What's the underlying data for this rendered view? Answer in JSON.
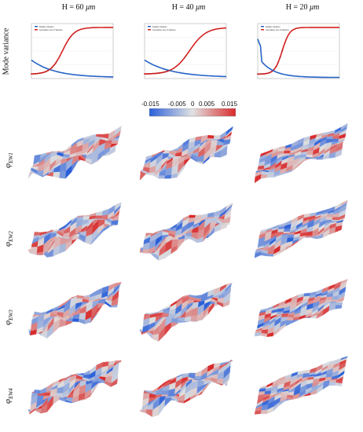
{
  "columns": [
    {
      "title": "H = 60 ",
      "unit": "μm"
    },
    {
      "title": "H = 40 ",
      "unit": "μm"
    },
    {
      "title": "H = 20 ",
      "unit": "μm"
    }
  ],
  "ylabel_main": "Mode variance",
  "colorbar": {
    "labels": [
      "-0.015",
      "-0.005",
      "0",
      "0.005",
      "0.015"
    ],
    "low_color": "#2a5fd9",
    "mid_color": "#dcdcdc",
    "high_color": "#d92a2a"
  },
  "rows": [
    {
      "label": "φ",
      "sub": "EW1"
    },
    {
      "label": "φ",
      "sub": "EW2"
    },
    {
      "label": "φ",
      "sub": "EW3"
    },
    {
      "label": "φ",
      "sub": "EW4"
    }
  ],
  "chart_data": [
    {
      "type": "line",
      "series": [
        {
          "name": "Relative Variance"
        },
        {
          "name": "Cumulative sum of Variance"
        }
      ]
    },
    {
      "type": "line",
      "series": [
        {
          "name": "Relative Variance"
        },
        {
          "name": "Cumulative sum of Variance"
        }
      ]
    },
    {
      "type": "line",
      "series": [
        {
          "name": "Relative Variance"
        },
        {
          "name": "Cumulative sum of Variance"
        }
      ]
    }
  ]
}
